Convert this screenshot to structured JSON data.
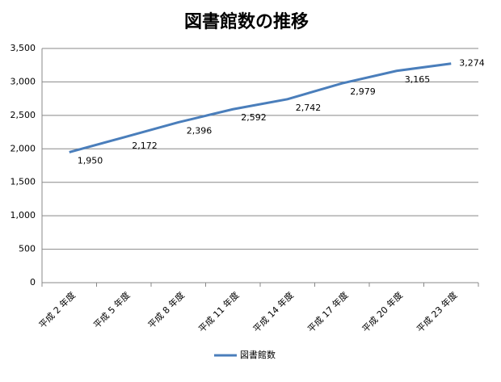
{
  "chart_data": {
    "type": "line",
    "title": "図書館数の推移",
    "categories": [
      "平成 2 年度",
      "平成 5 年度",
      "平成 8 年度",
      "平成 11 年度",
      "平成 14 年度",
      "平成 17 年度",
      "平成 20 年度",
      "平成 23 年度"
    ],
    "series": [
      {
        "name": "図書館数",
        "color": "#4a7ebb",
        "values": [
          1950,
          2172,
          2396,
          2592,
          2742,
          2979,
          3165,
          3274
        ],
        "value_labels": [
          "1,950",
          "2,172",
          "2,396",
          "2,592",
          "2,742",
          "2,979",
          "3,165",
          "3,274"
        ]
      }
    ],
    "ylim": [
      0,
      3500
    ],
    "yticks": [
      0,
      500,
      {
        "value": 1000,
        "label": "1,000"
      },
      {
        "value": 1500,
        "label": "1,500"
      },
      {
        "value": 2000,
        "label": "2,000"
      },
      {
        "value": 2500,
        "label": "2,500"
      },
      {
        "value": 3000,
        "label": "3,000"
      },
      {
        "value": 3500,
        "label": "3,500"
      }
    ],
    "grid": true,
    "legend": "bottom"
  }
}
